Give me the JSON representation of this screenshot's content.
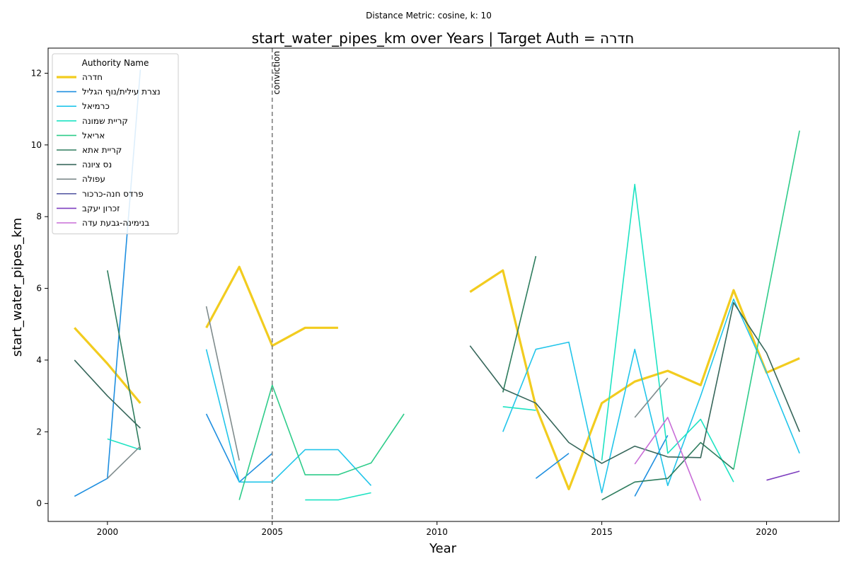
{
  "chart_data": {
    "type": "line",
    "suptitle": "Distance Metric: cosine, k: 10",
    "title": "start_water_pipes_km over Years | Target Auth = חדרה",
    "xlabel": "Year",
    "ylabel": "start_water_pipes_km",
    "xlim": [
      1998.2,
      2022.2
    ],
    "ylim": [
      -0.5,
      12.7
    ],
    "xticks": [
      2000,
      2005,
      2010,
      2015,
      2020
    ],
    "yticks": [
      0,
      2,
      4,
      6,
      8,
      10,
      12
    ],
    "grid": false,
    "legend": {
      "title": "Authority Name",
      "placement": "top-left"
    },
    "vline": {
      "x": 2005,
      "label": "conviction",
      "color": "#808080"
    },
    "series": [
      {
        "name": "חדרה",
        "color": "#f2cc1f",
        "width": 3.2,
        "segments": [
          [
            [
              1999,
              4.9
            ],
            [
              2000,
              3.9
            ],
            [
              2001,
              2.8
            ]
          ],
          [
            [
              2003,
              4.9
            ],
            [
              2004,
              6.6
            ],
            [
              2005,
              4.4
            ],
            [
              2006,
              4.9
            ],
            [
              2007,
              4.9
            ]
          ],
          [
            [
              2011,
              5.9
            ],
            [
              2012,
              6.5
            ],
            [
              2013,
              2.7
            ],
            [
              2014,
              0.4
            ],
            [
              2015,
              2.8
            ],
            [
              2016,
              3.4
            ],
            [
              2017,
              3.7
            ],
            [
              2018,
              3.3
            ],
            [
              2019,
              5.95
            ],
            [
              2020,
              3.65
            ],
            [
              2021,
              4.05
            ]
          ]
        ]
      },
      {
        "name": "נצרת עילית/נוף הגליל",
        "color": "#1f8fe0",
        "width": 1.6,
        "segments": [
          [
            [
              1999,
              0.2
            ],
            [
              2000,
              0.7
            ],
            [
              2001,
              12.1
            ]
          ],
          [
            [
              2003,
              2.5
            ],
            [
              2004,
              0.6
            ],
            [
              2005,
              1.4
            ]
          ],
          [
            [
              2013,
              0.7
            ],
            [
              2014,
              1.4
            ]
          ],
          [
            [
              2016,
              0.2
            ],
            [
              2017,
              1.9
            ]
          ]
        ]
      },
      {
        "name": "כרמיאל",
        "color": "#22c5ea",
        "width": 1.6,
        "segments": [
          [
            [
              2003,
              4.3
            ],
            [
              2004,
              0.6
            ],
            [
              2005,
              0.6
            ],
            [
              2006,
              1.5
            ],
            [
              2007,
              1.5
            ],
            [
              2008,
              0.5
            ]
          ],
          [
            [
              2012,
              2.0
            ],
            [
              2013,
              4.3
            ],
            [
              2014,
              4.5
            ],
            [
              2015,
              0.3
            ],
            [
              2016,
              4.3
            ],
            [
              2017,
              0.5
            ],
            [
              2018,
              3.0
            ],
            [
              2019,
              5.7
            ],
            [
              2020,
              3.65
            ],
            [
              2021,
              1.4
            ]
          ]
        ]
      },
      {
        "name": "קריית שמונה",
        "color": "#1ee3c3",
        "width": 1.6,
        "segments": [
          [
            [
              2000,
              1.8
            ],
            [
              2001,
              1.5
            ]
          ],
          [
            [
              2006,
              0.1
            ],
            [
              2007,
              0.1
            ],
            [
              2008,
              0.3
            ]
          ],
          [
            [
              2012,
              2.7
            ],
            [
              2013,
              2.6
            ]
          ],
          [
            [
              2015,
              1.2
            ],
            [
              2016,
              8.9
            ],
            [
              2017,
              1.4
            ],
            [
              2018,
              2.35
            ],
            [
              2019,
              0.6
            ]
          ]
        ]
      },
      {
        "name": "אריאל",
        "color": "#2ecc8a",
        "width": 1.6,
        "segments": [
          [
            [
              2004,
              0.1
            ],
            [
              2005,
              3.3
            ],
            [
              2006,
              0.8
            ],
            [
              2007,
              0.8
            ],
            [
              2008,
              1.13
            ],
            [
              2009,
              2.5
            ]
          ],
          [
            [
              2019,
              0.95
            ],
            [
              2021,
              10.4
            ]
          ]
        ]
      },
      {
        "name": "קריית אתא",
        "color": "#2e7d5e",
        "width": 1.6,
        "segments": [
          [
            [
              2000,
              6.5
            ],
            [
              2001,
              1.5
            ]
          ],
          [
            [
              2012,
              3.1
            ],
            [
              2013,
              6.9
            ]
          ],
          [
            [
              2015,
              0.1
            ],
            [
              2016,
              0.6
            ],
            [
              2017,
              0.7
            ],
            [
              2018,
              1.7
            ],
            [
              2019,
              0.95
            ]
          ]
        ]
      },
      {
        "name": "נס ציונה",
        "color": "#36665a",
        "width": 1.6,
        "segments": [
          [
            [
              1999,
              4.0
            ],
            [
              2000,
              3.0
            ],
            [
              2001,
              2.1
            ]
          ],
          [
            [
              2011,
              4.4
            ],
            [
              2012,
              3.2
            ],
            [
              2013,
              2.8
            ],
            [
              2014,
              1.7
            ],
            [
              2015,
              1.12
            ],
            [
              2016,
              1.6
            ],
            [
              2017,
              1.3
            ],
            [
              2018,
              1.28
            ],
            [
              2019,
              5.6
            ],
            [
              2020,
              4.2
            ],
            [
              2021,
              2.0
            ]
          ]
        ]
      },
      {
        "name": "עפולה",
        "color": "#7f8c8d",
        "width": 1.6,
        "segments": [
          [
            [
              2000,
              0.7
            ],
            [
              2001,
              1.6
            ]
          ],
          [
            [
              2003,
              5.5
            ],
            [
              2004,
              1.2
            ]
          ],
          [
            [
              2016,
              2.4
            ],
            [
              2017,
              3.5
            ]
          ]
        ]
      },
      {
        "name": "פרדס חנה-כרכור",
        "color": "#5b5ea6",
        "width": 1.6,
        "segments": []
      },
      {
        "name": "זכרון יעקב",
        "color": "#7e3fbf",
        "width": 1.6,
        "segments": [
          [
            [
              2020,
              0.65
            ],
            [
              2021,
              0.9
            ]
          ]
        ]
      },
      {
        "name": "בנימינה-גבעת עדה",
        "color": "#c86dd7",
        "width": 1.6,
        "segments": [
          [
            [
              2016,
              1.1
            ],
            [
              2017,
              2.4
            ],
            [
              2018,
              0.08
            ]
          ]
        ]
      }
    ]
  }
}
